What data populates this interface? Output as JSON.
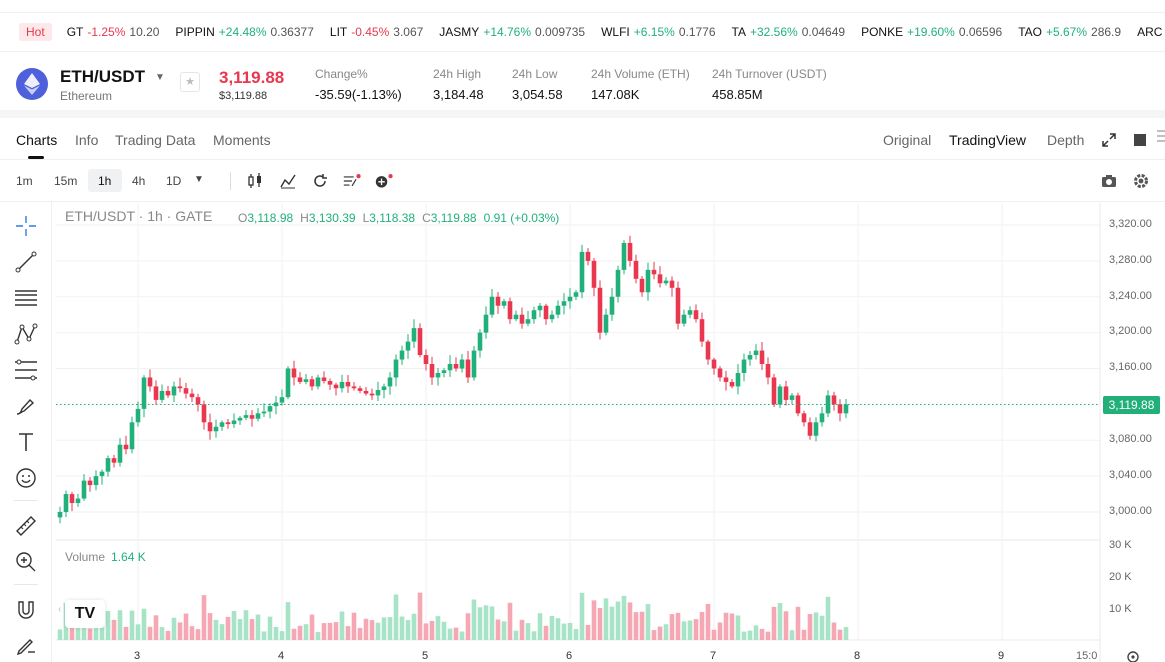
{
  "ticker": {
    "hot_label": "Hot",
    "items": [
      {
        "symbol": "GT",
        "change": "-1.25%",
        "price": "10.20",
        "dir": "dn"
      },
      {
        "symbol": "PIPPIN",
        "change": "+24.48%",
        "price": "0.36377",
        "dir": "up"
      },
      {
        "symbol": "LIT",
        "change": "-0.45%",
        "price": "3.067",
        "dir": "dn"
      },
      {
        "symbol": "JASMY",
        "change": "+14.76%",
        "price": "0.009735",
        "dir": "up"
      },
      {
        "symbol": "WLFI",
        "change": "+6.15%",
        "price": "0.1776",
        "dir": "up"
      },
      {
        "symbol": "TA",
        "change": "+32.56%",
        "price": "0.04649",
        "dir": "up"
      },
      {
        "symbol": "PONKE",
        "change": "+19.60%",
        "price": "0.06596",
        "dir": "up"
      },
      {
        "symbol": "TAO",
        "change": "+5.67%",
        "price": "286.9",
        "dir": "up"
      },
      {
        "symbol": "ARC",
        "change": "+",
        "price": "",
        "dir": "up"
      }
    ]
  },
  "header": {
    "pair": "ETH/USDT",
    "pair_sub": "Ethereum",
    "price": "3,119.88",
    "price_usd": "$3,119.88",
    "stats": [
      {
        "label": "Change%",
        "value": "-35.59(-1.13%)",
        "dir": "dn"
      },
      {
        "label": "24h High",
        "value": "3,184.48",
        "dir": ""
      },
      {
        "label": "24h Low",
        "value": "3,054.58",
        "dir": ""
      },
      {
        "label": "24h Volume (ETH)",
        "value": "147.08K",
        "dir": ""
      },
      {
        "label": "24h Turnover (USDT)",
        "value": "458.85M",
        "dir": ""
      }
    ]
  },
  "tabs": [
    "Charts",
    "Info",
    "Trading Data",
    "Moments"
  ],
  "view_options": [
    "Original",
    "TradingView",
    "Depth"
  ],
  "intervals": [
    "1m",
    "15m",
    "1h",
    "4h",
    "1D"
  ],
  "chart": {
    "legend": "ETH/USDT · 1h · GATE",
    "ohlc": {
      "o_label": "O",
      "o": "3,118.98",
      "h_label": "H",
      "h": "3,130.39",
      "l_label": "L",
      "l": "3,118.38",
      "c_label": "C",
      "c": "3,119.88",
      "change": "0.91 (+0.03%)"
    },
    "last_price": "3,119.88",
    "volume_label": "Volume",
    "volume_value": "1.64 K",
    "y_ticks": [
      "3,320.00",
      "3,280.00",
      "3,240.00",
      "3,200.00",
      "3,160.00",
      "3,120.00",
      "3,080.00",
      "3,040.00",
      "3,000.00"
    ],
    "vol_ticks": [
      "30 K",
      "20 K",
      "10 K"
    ],
    "x_ticks": [
      "3",
      "4",
      "5",
      "6",
      "7",
      "8",
      "9"
    ],
    "time_label": "15:0",
    "tv_logo": "TV",
    "colors": {
      "up": "#21b07a",
      "down": "#e8374f",
      "vol_up": "#a6e3c7",
      "vol_down": "#f5a8b4"
    }
  },
  "chart_data": {
    "type": "candlestick",
    "title": "ETH/USDT · 1h · GATE",
    "y_range": [
      2990,
      3330
    ],
    "volume_range": [
      0,
      30
    ],
    "x_day_labels": [
      "3",
      "4",
      "5",
      "6",
      "7",
      "8",
      "9"
    ],
    "closes": [
      3000,
      3020,
      3010,
      3015,
      3035,
      3030,
      3040,
      3045,
      3060,
      3055,
      3075,
      3070,
      3100,
      3115,
      3150,
      3140,
      3125,
      3135,
      3130,
      3140,
      3138,
      3132,
      3128,
      3120,
      3100,
      3090,
      3095,
      3100,
      3098,
      3102,
      3105,
      3108,
      3104,
      3110,
      3112,
      3118,
      3122,
      3128,
      3160,
      3150,
      3145,
      3148,
      3140,
      3150,
      3146,
      3142,
      3138,
      3145,
      3140,
      3138,
      3135,
      3132,
      3130,
      3136,
      3140,
      3150,
      3170,
      3180,
      3190,
      3205,
      3175,
      3165,
      3150,
      3155,
      3158,
      3165,
      3160,
      3170,
      3150,
      3180,
      3200,
      3220,
      3240,
      3230,
      3235,
      3215,
      3220,
      3210,
      3215,
      3225,
      3230,
      3215,
      3220,
      3230,
      3235,
      3240,
      3245,
      3290,
      3280,
      3250,
      3200,
      3220,
      3240,
      3270,
      3300,
      3280,
      3260,
      3245,
      3270,
      3265,
      3255,
      3258,
      3250,
      3210,
      3220,
      3225,
      3215,
      3190,
      3170,
      3160,
      3150,
      3145,
      3140,
      3155,
      3170,
      3175,
      3180,
      3165,
      3150,
      3120,
      3140,
      3125,
      3130,
      3110,
      3100,
      3085,
      3100,
      3110,
      3130,
      3120,
      3110,
      3120
    ]
  }
}
